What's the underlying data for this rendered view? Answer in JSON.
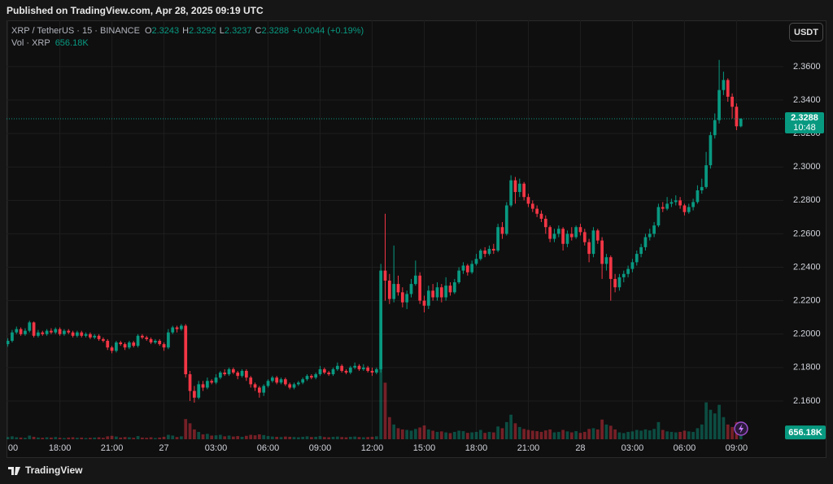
{
  "header": {
    "published": "Published on TradingView.com, Apr 28, 2025 09:19 UTC"
  },
  "footer": {
    "brand": "TradingView"
  },
  "chart_data": {
    "type": "candlestick",
    "title": "XRP / TetherUS · 15 · BINANCE",
    "ohlc_labels": [
      "O",
      "H",
      "L",
      "C"
    ],
    "change": "+0.0044 (+0.19%)",
    "volume_title": "Vol · XRP",
    "volume_value_label": "656.18K",
    "currency": "USDT",
    "countdown": "10:48",
    "up_color": "#089981",
    "down_color": "#f23645",
    "grid": true,
    "ylim": [
      2.1371,
      2.3877
    ],
    "yticks": [
      {
        "value": 2.16,
        "label": "2.1600"
      },
      {
        "value": 2.18,
        "label": "2.1800"
      },
      {
        "value": 2.2,
        "label": "2.2000"
      },
      {
        "value": 2.22,
        "label": "2.2200"
      },
      {
        "value": 2.24,
        "label": "2.2400"
      },
      {
        "value": 2.26,
        "label": "2.2600"
      },
      {
        "value": 2.28,
        "label": "2.2800"
      },
      {
        "value": 2.3,
        "label": "2.3000"
      },
      {
        "value": 2.32,
        "label": "2.3200"
      },
      {
        "value": 2.34,
        "label": "2.3400"
      },
      {
        "value": 2.36,
        "label": "2.3600"
      }
    ],
    "xlim": [
      -0.3,
      178.8
    ],
    "xticks": [
      {
        "value": 0,
        "label": "00"
      },
      {
        "value": 12,
        "label": "18:00"
      },
      {
        "value": 24,
        "label": "21:00"
      },
      {
        "value": 36,
        "label": "27"
      },
      {
        "value": 48,
        "label": "03:00"
      },
      {
        "value": 60,
        "label": "06:00"
      },
      {
        "value": 72,
        "label": "09:00"
      },
      {
        "value": 84,
        "label": "12:00"
      },
      {
        "value": 96,
        "label": "15:00"
      },
      {
        "value": 108,
        "label": "18:00"
      },
      {
        "value": 120,
        "label": "21:00"
      },
      {
        "value": 132,
        "label": "28"
      },
      {
        "value": 144,
        "label": "03:00"
      },
      {
        "value": 156,
        "label": "06:00"
      },
      {
        "value": 168,
        "label": "09:00"
      }
    ],
    "open": [
      2.194,
      2.196,
      2.201,
      2.203,
      2.2,
      2.202,
      2.207,
      2.199,
      2.201,
      2.2,
      2.202,
      2.201,
      2.203,
      2.2,
      2.202,
      2.201,
      2.199,
      2.201,
      2.199,
      2.2,
      2.198,
      2.199,
      2.197,
      2.196,
      2.192,
      2.19,
      2.195,
      2.194,
      2.192,
      2.195,
      2.193,
      2.199,
      2.198,
      2.197,
      2.195,
      2.196,
      2.194,
      2.192,
      2.201,
      2.204,
      2.203,
      2.205,
      2.176,
      2.166,
      2.162,
      2.17,
      2.168,
      2.172,
      2.171,
      2.174,
      2.177,
      2.176,
      2.179,
      2.177,
      2.175,
      2.178,
      2.174,
      2.17,
      2.168,
      2.165,
      2.169,
      2.172,
      2.174,
      2.171,
      2.173,
      2.17,
      2.168,
      2.17,
      2.171,
      2.173,
      2.175,
      2.174,
      2.176,
      2.179,
      2.177,
      2.176,
      2.179,
      2.181,
      2.178,
      2.177,
      2.18,
      2.181,
      2.179,
      2.18,
      2.178,
      2.177,
      2.179,
      2.238,
      2.232,
      2.221,
      2.23,
      2.225,
      2.219,
      2.224,
      2.23,
      2.235,
      2.22,
      2.217,
      2.226,
      2.222,
      2.228,
      2.222,
      2.229,
      2.225,
      2.231,
      2.238,
      2.241,
      2.237,
      2.242,
      2.245,
      2.25,
      2.248,
      2.251,
      2.25,
      2.264,
      2.26,
      2.277,
      2.292,
      2.285,
      2.29,
      2.282,
      2.278,
      2.275,
      2.272,
      2.269,
      2.264,
      2.257,
      2.26,
      2.263,
      2.254,
      2.26,
      2.258,
      2.264,
      2.261,
      2.255,
      2.248,
      2.262,
      2.256,
      2.242,
      2.246,
      2.233,
      2.228,
      2.234,
      2.236,
      2.239,
      2.243,
      2.248,
      2.252,
      2.258,
      2.26,
      2.265,
      2.276,
      2.275,
      2.278,
      2.279,
      2.28,
      2.277,
      2.273,
      2.276,
      2.279,
      2.286,
      2.288,
      2.301,
      2.319,
      2.328,
      2.346,
      2.352,
      2.342,
      2.336,
      2.3243
    ],
    "high": [
      2.1975,
      2.2025,
      2.2045,
      2.204,
      2.2035,
      2.208,
      2.2075,
      2.2025,
      2.202,
      2.203,
      2.2035,
      2.204,
      2.204,
      2.203,
      2.203,
      2.202,
      2.202,
      2.202,
      2.201,
      2.201,
      2.2,
      2.2,
      2.198,
      2.197,
      2.193,
      2.196,
      2.196,
      2.195,
      2.196,
      2.196,
      2.2,
      2.2,
      2.199,
      2.198,
      2.197,
      2.197,
      2.195,
      2.203,
      2.205,
      2.205,
      2.206,
      2.206,
      2.178,
      2.169,
      2.172,
      2.172,
      2.174,
      2.173,
      2.176,
      2.178,
      2.179,
      2.18,
      2.18,
      2.178,
      2.179,
      2.179,
      2.175,
      2.171,
      2.169,
      2.17,
      2.173,
      2.175,
      2.175,
      2.174,
      2.174,
      2.171,
      2.171,
      2.172,
      2.174,
      2.176,
      2.176,
      2.177,
      2.181,
      2.18,
      2.178,
      2.18,
      2.183,
      2.182,
      2.179,
      2.181,
      2.183,
      2.182,
      2.182,
      2.181,
      2.18,
      2.18,
      2.242,
      2.272,
      2.236,
      2.253,
      2.235,
      2.228,
      2.226,
      2.233,
      2.244,
      2.237,
      2.223,
      2.229,
      2.23,
      2.231,
      2.23,
      2.234,
      2.231,
      2.233,
      2.24,
      2.243,
      2.242,
      2.244,
      2.248,
      2.251,
      2.252,
      2.253,
      2.254,
      2.266,
      2.267,
      2.279,
      2.295,
      2.294,
      2.293,
      2.291,
      2.284,
      2.28,
      2.277,
      2.274,
      2.271,
      2.265,
      2.263,
      2.265,
      2.264,
      2.262,
      2.264,
      2.265,
      2.266,
      2.263,
      2.257,
      2.264,
      2.263,
      2.258,
      2.248,
      2.247,
      2.236,
      2.236,
      2.238,
      2.241,
      2.245,
      2.25,
      2.254,
      2.26,
      2.263,
      2.267,
      2.278,
      2.279,
      2.282,
      2.281,
      2.283,
      2.282,
      2.278,
      2.278,
      2.281,
      2.289,
      2.293,
      2.309,
      2.321,
      2.332,
      2.364,
      2.357,
      2.353,
      2.344,
      2.338,
      2.3292
    ],
    "low": [
      2.1925,
      2.195,
      2.2,
      2.199,
      2.199,
      2.201,
      2.198,
      2.198,
      2.199,
      2.199,
      2.2,
      2.2,
      2.199,
      2.199,
      2.2,
      2.198,
      2.198,
      2.198,
      2.198,
      2.197,
      2.197,
      2.196,
      2.195,
      2.1905,
      2.1885,
      2.189,
      2.193,
      2.1905,
      2.191,
      2.192,
      2.192,
      2.197,
      2.196,
      2.194,
      2.194,
      2.193,
      2.19,
      2.191,
      2.2,
      2.201,
      2.202,
      2.174,
      2.16,
      2.159,
      2.161,
      2.166,
      2.167,
      2.17,
      2.17,
      2.173,
      2.175,
      2.175,
      2.176,
      2.173,
      2.174,
      2.172,
      2.168,
      2.166,
      2.162,
      2.163,
      2.168,
      2.171,
      2.17,
      2.17,
      2.169,
      2.167,
      2.167,
      2.169,
      2.17,
      2.172,
      2.173,
      2.173,
      2.175,
      2.176,
      2.175,
      2.175,
      2.178,
      2.177,
      2.176,
      2.176,
      2.179,
      2.178,
      2.178,
      2.177,
      2.175,
      2.176,
      2.177,
      2.22,
      2.218,
      2.219,
      2.223,
      2.216,
      2.215,
      2.222,
      2.229,
      2.218,
      2.213,
      2.215,
      2.22,
      2.22,
      2.219,
      2.22,
      2.223,
      2.224,
      2.23,
      2.236,
      2.235,
      2.236,
      2.241,
      2.244,
      2.246,
      2.247,
      2.248,
      2.249,
      2.257,
      2.259,
      2.276,
      2.278,
      2.282,
      2.28,
      2.276,
      2.273,
      2.27,
      2.267,
      2.26,
      2.255,
      2.255,
      2.258,
      2.25,
      2.252,
      2.256,
      2.257,
      2.259,
      2.253,
      2.243,
      2.246,
      2.254,
      2.233,
      2.238,
      2.22,
      2.225,
      2.226,
      2.231,
      2.234,
      2.237,
      2.241,
      2.246,
      2.25,
      2.256,
      2.258,
      2.264,
      2.273,
      2.274,
      2.276,
      2.277,
      2.275,
      2.271,
      2.272,
      2.274,
      2.278,
      2.284,
      2.287,
      2.299,
      2.317,
      2.326,
      2.343,
      2.339,
      2.329,
      2.322,
      2.3237
    ],
    "close": [
      2.196,
      2.201,
      2.203,
      2.2,
      2.202,
      2.207,
      2.199,
      2.201,
      2.2,
      2.202,
      2.201,
      2.203,
      2.2,
      2.202,
      2.201,
      2.199,
      2.201,
      2.199,
      2.2,
      2.198,
      2.199,
      2.197,
      2.196,
      2.192,
      2.19,
      2.195,
      2.194,
      2.192,
      2.195,
      2.193,
      2.199,
      2.198,
      2.197,
      2.195,
      2.196,
      2.194,
      2.192,
      2.201,
      2.204,
      2.203,
      2.205,
      2.176,
      2.166,
      2.162,
      2.17,
      2.168,
      2.172,
      2.171,
      2.174,
      2.177,
      2.176,
      2.179,
      2.177,
      2.175,
      2.178,
      2.174,
      2.17,
      2.168,
      2.165,
      2.169,
      2.172,
      2.174,
      2.171,
      2.173,
      2.17,
      2.168,
      2.17,
      2.171,
      2.173,
      2.175,
      2.174,
      2.176,
      2.179,
      2.177,
      2.176,
      2.179,
      2.181,
      2.178,
      2.177,
      2.18,
      2.181,
      2.179,
      2.18,
      2.178,
      2.177,
      2.179,
      2.238,
      2.232,
      2.221,
      2.23,
      2.225,
      2.219,
      2.224,
      2.23,
      2.235,
      2.22,
      2.217,
      2.226,
      2.222,
      2.228,
      2.222,
      2.229,
      2.225,
      2.231,
      2.238,
      2.241,
      2.237,
      2.242,
      2.245,
      2.25,
      2.248,
      2.251,
      2.25,
      2.264,
      2.26,
      2.277,
      2.292,
      2.285,
      2.29,
      2.282,
      2.278,
      2.275,
      2.272,
      2.269,
      2.264,
      2.257,
      2.26,
      2.263,
      2.254,
      2.26,
      2.258,
      2.264,
      2.261,
      2.255,
      2.248,
      2.262,
      2.256,
      2.242,
      2.246,
      2.233,
      2.228,
      2.234,
      2.236,
      2.239,
      2.243,
      2.248,
      2.252,
      2.258,
      2.26,
      2.265,
      2.276,
      2.275,
      2.278,
      2.279,
      2.28,
      2.277,
      2.273,
      2.276,
      2.279,
      2.286,
      2.288,
      2.301,
      2.319,
      2.328,
      2.346,
      2.352,
      2.342,
      2.336,
      2.3243,
      2.3288
    ],
    "volume": [
      90000,
      120000,
      80000,
      70000,
      60000,
      150000,
      100000,
      70000,
      60000,
      80000,
      70000,
      90000,
      60000,
      50000,
      70000,
      80000,
      60000,
      70000,
      50000,
      60000,
      70000,
      80000,
      60000,
      120000,
      140000,
      110000,
      70000,
      90000,
      80000,
      60000,
      130000,
      70000,
      60000,
      80000,
      50000,
      70000,
      100000,
      180000,
      150000,
      90000,
      120000,
      820000,
      650000,
      400000,
      300000,
      200000,
      220000,
      150000,
      160000,
      180000,
      120000,
      150000,
      110000,
      130000,
      100000,
      140000,
      180000,
      160000,
      200000,
      170000,
      130000,
      110000,
      100000,
      90000,
      110000,
      100000,
      90000,
      80000,
      100000,
      120000,
      90000,
      100000,
      130000,
      90000,
      80000,
      100000,
      110000,
      90000,
      80000,
      100000,
      110000,
      90000,
      80000,
      90000,
      100000,
      120000,
      4300000,
      2300000,
      900000,
      600000,
      450000,
      400000,
      380000,
      350000,
      420000,
      480000,
      560000,
      400000,
      350000,
      300000,
      320000,
      280000,
      250000,
      300000,
      350000,
      330000,
      260000,
      280000,
      300000,
      380000,
      260000,
      300000,
      280000,
      520000,
      450000,
      700000,
      1000000,
      650000,
      500000,
      420000,
      380000,
      350000,
      330000,
      300000,
      360000,
      400000,
      280000,
      300000,
      380000,
      320000,
      280000,
      330000,
      260000,
      300000,
      420000,
      450000,
      400000,
      800000,
      600000,
      550000,
      400000,
      280000,
      250000,
      300000,
      320000,
      380000,
      350000,
      400000,
      360000,
      420000,
      700000,
      380000,
      320000,
      300000,
      280000,
      300000,
      350000,
      320000,
      300000,
      450000,
      600000,
      1500000,
      1200000,
      1050000,
      1400000,
      900000,
      600000,
      500000,
      700000,
      656180
    ]
  }
}
